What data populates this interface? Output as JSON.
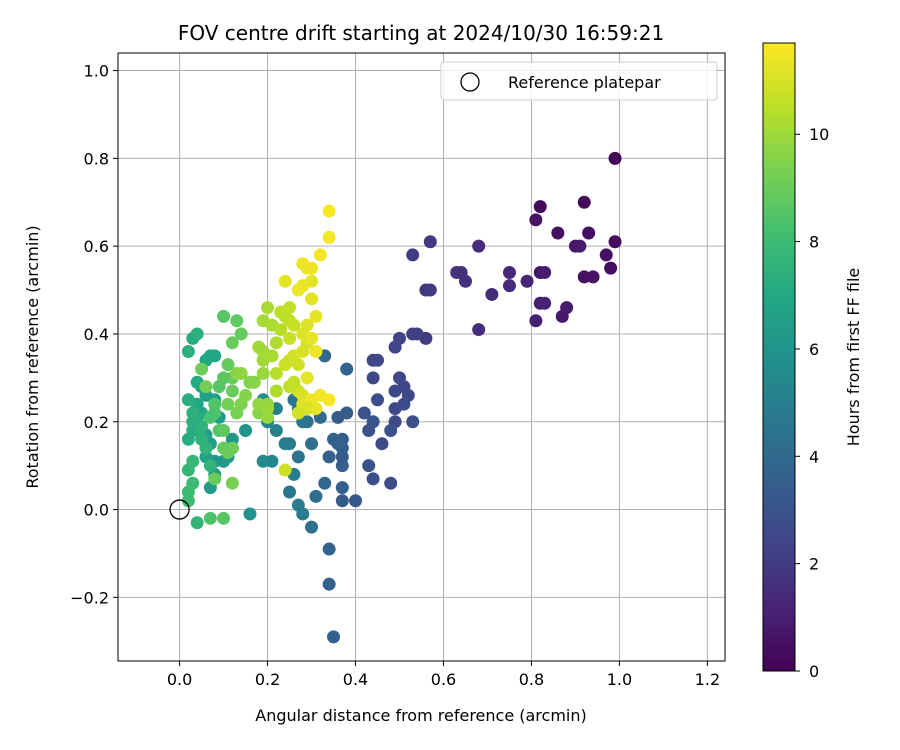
{
  "chart_data": {
    "type": "scatter",
    "title": "FOV centre drift starting at 2024/10/30 16:59:21",
    "xlabel": "Angular distance from reference (arcmin)",
    "ylabel": "Rotation from reference (arcmin)",
    "xlim": [
      -0.14,
      1.24
    ],
    "ylim": [
      -0.345,
      1.04
    ],
    "xticks": [
      0.0,
      0.2,
      0.4,
      0.6,
      0.8,
      1.0,
      1.2
    ],
    "xtick_labels": [
      "0.0",
      "0.2",
      "0.4",
      "0.6",
      "0.8",
      "1.0",
      "1.2"
    ],
    "yticks": [
      -0.2,
      0.0,
      0.2,
      0.4,
      0.6,
      0.8,
      1.0
    ],
    "ytick_labels": [
      "−0.2",
      "0.0",
      "0.2",
      "0.4",
      "0.6",
      "0.8",
      "1.0"
    ],
    "grid": true,
    "legend": {
      "placement": "top-right",
      "entries": [
        "Reference platepar"
      ]
    },
    "reference_point": {
      "x": 0.0,
      "y": 0.0
    },
    "colorbar": {
      "label": "Hours from first FF file",
      "colormap": "viridis",
      "min": 0,
      "max": 11.7,
      "ticks": [
        0,
        2,
        4,
        6,
        8,
        10
      ],
      "tick_labels": [
        "0",
        "2",
        "4",
        "6",
        "8",
        "10"
      ]
    },
    "points": [
      [
        0.99,
        0.8,
        0.1
      ],
      [
        0.99,
        0.61,
        0.3
      ],
      [
        0.97,
        0.58,
        0.5
      ],
      [
        0.98,
        0.55,
        0.4
      ],
      [
        0.94,
        0.53,
        0.6
      ],
      [
        0.92,
        0.53,
        0.5
      ],
      [
        0.93,
        0.63,
        0.4
      ],
      [
        0.92,
        0.7,
        0.3
      ],
      [
        0.9,
        0.6,
        0.7
      ],
      [
        0.91,
        0.6,
        0.8
      ],
      [
        0.86,
        0.63,
        0.5
      ],
      [
        0.82,
        0.69,
        0.3
      ],
      [
        0.81,
        0.66,
        0.6
      ],
      [
        0.82,
        0.54,
        0.7
      ],
      [
        0.83,
        0.54,
        0.9
      ],
      [
        0.88,
        0.46,
        0.9
      ],
      [
        0.87,
        0.44,
        0.8
      ],
      [
        0.82,
        0.47,
        1.0
      ],
      [
        0.83,
        0.47,
        1.1
      ],
      [
        0.81,
        0.43,
        1.0
      ],
      [
        0.79,
        0.52,
        1.2
      ],
      [
        0.75,
        0.54,
        1.3
      ],
      [
        0.75,
        0.51,
        1.4
      ],
      [
        0.71,
        0.49,
        1.5
      ],
      [
        0.68,
        0.6,
        1.4
      ],
      [
        0.64,
        0.54,
        1.6
      ],
      [
        0.65,
        0.52,
        1.7
      ],
      [
        0.63,
        0.54,
        1.6
      ],
      [
        0.68,
        0.41,
        1.5
      ],
      [
        0.57,
        0.61,
        1.9
      ],
      [
        0.56,
        0.5,
        1.8
      ],
      [
        0.57,
        0.5,
        2.0
      ],
      [
        0.53,
        0.58,
        2.1
      ],
      [
        0.56,
        0.39,
        2.0
      ],
      [
        0.53,
        0.4,
        2.1
      ],
      [
        0.54,
        0.4,
        2.2
      ],
      [
        0.5,
        0.39,
        2.3
      ],
      [
        0.49,
        0.37,
        2.4
      ],
      [
        0.5,
        0.3,
        2.5
      ],
      [
        0.51,
        0.28,
        2.5
      ],
      [
        0.52,
        0.26,
        2.6
      ],
      [
        0.51,
        0.24,
        2.7
      ],
      [
        0.49,
        0.27,
        2.6
      ],
      [
        0.49,
        0.23,
        2.5
      ],
      [
        0.53,
        0.2,
        2.8
      ],
      [
        0.49,
        0.2,
        2.7
      ],
      [
        0.48,
        0.18,
        2.9
      ],
      [
        0.46,
        0.15,
        2.6
      ],
      [
        0.44,
        0.34,
        2.4
      ],
      [
        0.45,
        0.34,
        2.5
      ],
      [
        0.44,
        0.3,
        2.6
      ],
      [
        0.45,
        0.25,
        2.8
      ],
      [
        0.42,
        0.22,
        3.0
      ],
      [
        0.43,
        0.18,
        3.0
      ],
      [
        0.44,
        0.2,
        3.1
      ],
      [
        0.43,
        0.1,
        3.0
      ],
      [
        0.44,
        0.07,
        2.8
      ],
      [
        0.48,
        0.06,
        2.7
      ],
      [
        0.4,
        0.02,
        3.2
      ],
      [
        0.38,
        0.32,
        3.6
      ],
      [
        0.38,
        0.22,
        3.4
      ],
      [
        0.37,
        0.16,
        3.4
      ],
      [
        0.36,
        0.21,
        3.3
      ],
      [
        0.37,
        0.14,
        3.5
      ],
      [
        0.37,
        0.1,
        3.5
      ],
      [
        0.37,
        0.12,
        3.4
      ],
      [
        0.37,
        0.05,
        3.6
      ],
      [
        0.37,
        0.02,
        3.3
      ],
      [
        0.36,
        0.15,
        3.7
      ],
      [
        0.35,
        0.16,
        3.7
      ],
      [
        0.34,
        0.12,
        3.6
      ],
      [
        0.34,
        -0.09,
        3.7
      ],
      [
        0.34,
        -0.17,
        3.5
      ],
      [
        0.35,
        -0.29,
        3.6
      ],
      [
        0.33,
        0.35,
        4.0
      ],
      [
        0.32,
        0.21,
        4.1
      ],
      [
        0.33,
        0.06,
        4.0
      ],
      [
        0.3,
        0.15,
        4.2
      ],
      [
        0.29,
        0.2,
        4.3
      ],
      [
        0.31,
        0.03,
        4.1
      ],
      [
        0.3,
        -0.04,
        4.3
      ],
      [
        0.27,
        0.12,
        4.5
      ],
      [
        0.26,
        0.25,
        4.6
      ],
      [
        0.27,
        0.23,
        4.7
      ],
      [
        0.28,
        0.2,
        4.6
      ],
      [
        0.24,
        0.15,
        4.8
      ],
      [
        0.25,
        0.15,
        4.9
      ],
      [
        0.25,
        0.04,
        4.7
      ],
      [
        0.26,
        0.08,
        4.9
      ],
      [
        0.27,
        0.01,
        4.8
      ],
      [
        0.28,
        -0.01,
        4.8
      ],
      [
        0.22,
        0.18,
        5.2
      ],
      [
        0.22,
        0.23,
        5.1
      ],
      [
        0.2,
        0.2,
        5.3
      ],
      [
        0.21,
        0.11,
        5.4
      ],
      [
        0.19,
        0.11,
        5.5
      ],
      [
        0.19,
        0.25,
        5.6
      ],
      [
        0.16,
        -0.01,
        5.9
      ],
      [
        0.15,
        0.18,
        6.0
      ],
      [
        0.12,
        0.16,
        6.1
      ],
      [
        0.12,
        0.14,
        6.2
      ],
      [
        0.11,
        0.12,
        6.0
      ],
      [
        0.1,
        0.11,
        6.3
      ],
      [
        0.08,
        0.11,
        6.2
      ],
      [
        0.07,
        0.05,
        6.4
      ],
      [
        0.08,
        0.08,
        6.3
      ],
      [
        0.09,
        0.21,
        6.4
      ],
      [
        0.08,
        0.25,
        6.5
      ],
      [
        0.07,
        0.15,
        6.5
      ],
      [
        0.06,
        0.17,
        6.6
      ],
      [
        0.06,
        0.12,
        6.7
      ],
      [
        0.06,
        0.26,
        6.6
      ],
      [
        0.05,
        0.22,
        6.8
      ],
      [
        0.05,
        0.28,
        6.8
      ],
      [
        0.06,
        0.34,
        6.9
      ],
      [
        0.07,
        0.35,
        7.0
      ],
      [
        0.08,
        0.35,
        6.9
      ],
      [
        0.04,
        0.24,
        7.0
      ],
      [
        0.04,
        0.29,
        7.1
      ],
      [
        0.04,
        0.21,
        7.2
      ],
      [
        0.03,
        0.18,
        7.3
      ],
      [
        0.02,
        0.16,
        7.2
      ],
      [
        0.02,
        0.25,
        7.3
      ],
      [
        0.03,
        0.22,
        7.4
      ],
      [
        0.03,
        0.2,
        7.4
      ],
      [
        0.04,
        0.18,
        7.3
      ],
      [
        0.05,
        0.16,
        7.5
      ],
      [
        0.05,
        0.19,
        7.5
      ],
      [
        0.06,
        0.14,
        7.6
      ],
      [
        0.07,
        0.1,
        7.6
      ],
      [
        0.02,
        0.09,
        7.7
      ],
      [
        0.03,
        0.11,
        7.8
      ],
      [
        0.03,
        0.06,
        7.9
      ],
      [
        0.02,
        0.04,
        8.0
      ],
      [
        0.02,
        0.02,
        8.0
      ],
      [
        0.04,
        -0.03,
        7.6
      ],
      [
        0.02,
        0.36,
        7.4
      ],
      [
        0.03,
        0.39,
        7.2
      ],
      [
        0.04,
        0.4,
        7.4
      ],
      [
        0.07,
        -0.02,
        8.4
      ],
      [
        0.1,
        -0.02,
        8.6
      ],
      [
        0.1,
        0.44,
        8.6
      ],
      [
        0.13,
        0.43,
        8.8
      ],
      [
        0.14,
        0.4,
        8.9
      ],
      [
        0.12,
        0.38,
        9.0
      ],
      [
        0.11,
        0.33,
        8.9
      ],
      [
        0.12,
        0.3,
        9.0
      ],
      [
        0.1,
        0.3,
        8.7
      ],
      [
        0.09,
        0.28,
        8.6
      ],
      [
        0.08,
        0.24,
        8.5
      ],
      [
        0.08,
        0.22,
        8.4
      ],
      [
        0.07,
        0.21,
        8.3
      ],
      [
        0.09,
        0.18,
        8.5
      ],
      [
        0.1,
        0.18,
        8.8
      ],
      [
        0.1,
        0.14,
        8.9
      ],
      [
        0.11,
        0.13,
        9.0
      ],
      [
        0.12,
        0.14,
        9.1
      ],
      [
        0.12,
        0.06,
        9.3
      ],
      [
        0.08,
        0.07,
        9.0
      ],
      [
        0.06,
        0.28,
        9.2
      ],
      [
        0.05,
        0.32,
        9.1
      ],
      [
        0.11,
        0.24,
        9.2
      ],
      [
        0.13,
        0.22,
        9.3
      ],
      [
        0.14,
        0.24,
        9.4
      ],
      [
        0.15,
        0.26,
        9.5
      ],
      [
        0.16,
        0.29,
        9.4
      ],
      [
        0.13,
        0.31,
        9.6
      ],
      [
        0.14,
        0.31,
        9.7
      ],
      [
        0.18,
        0.22,
        9.6
      ],
      [
        0.18,
        0.24,
        9.8
      ],
      [
        0.2,
        0.21,
        9.9
      ],
      [
        0.2,
        0.24,
        9.8
      ],
      [
        0.19,
        0.31,
        9.9
      ],
      [
        0.19,
        0.34,
        10.0
      ],
      [
        0.19,
        0.36,
        10.1
      ],
      [
        0.18,
        0.37,
        10.0
      ],
      [
        0.19,
        0.43,
        10.1
      ],
      [
        0.2,
        0.46,
        10.2
      ],
      [
        0.21,
        0.42,
        10.2
      ],
      [
        0.22,
        0.38,
        10.3
      ],
      [
        0.21,
        0.35,
        10.2
      ],
      [
        0.22,
        0.31,
        10.4
      ],
      [
        0.23,
        0.41,
        10.4
      ],
      [
        0.23,
        0.45,
        10.5
      ],
      [
        0.24,
        0.44,
        10.5
      ],
      [
        0.25,
        0.46,
        10.6
      ],
      [
        0.25,
        0.43,
        10.6
      ],
      [
        0.26,
        0.42,
        10.7
      ],
      [
        0.25,
        0.39,
        10.7
      ],
      [
        0.24,
        0.33,
        10.8
      ],
      [
        0.25,
        0.34,
        10.8
      ],
      [
        0.26,
        0.35,
        10.9
      ],
      [
        0.27,
        0.33,
        10.9
      ],
      [
        0.28,
        0.36,
        11.0
      ],
      [
        0.29,
        0.38,
        11.0
      ],
      [
        0.28,
        0.4,
        11.1
      ],
      [
        0.29,
        0.42,
        11.1
      ],
      [
        0.3,
        0.48,
        11.2
      ],
      [
        0.31,
        0.44,
        11.3
      ],
      [
        0.3,
        0.52,
        11.2
      ],
      [
        0.29,
        0.55,
        11.3
      ],
      [
        0.28,
        0.56,
        11.4
      ],
      [
        0.3,
        0.55,
        11.4
      ],
      [
        0.28,
        0.51,
        11.3
      ],
      [
        0.27,
        0.5,
        11.4
      ],
      [
        0.24,
        0.52,
        11.2
      ],
      [
        0.32,
        0.58,
        11.5
      ],
      [
        0.34,
        0.62,
        11.5
      ],
      [
        0.34,
        0.68,
        11.6
      ],
      [
        0.3,
        0.39,
        11.3
      ],
      [
        0.31,
        0.36,
        11.4
      ],
      [
        0.27,
        0.27,
        10.9
      ],
      [
        0.28,
        0.26,
        11.0
      ],
      [
        0.28,
        0.24,
        11.1
      ],
      [
        0.29,
        0.3,
        11.2
      ],
      [
        0.3,
        0.25,
        11.4
      ],
      [
        0.32,
        0.26,
        11.5
      ],
      [
        0.34,
        0.25,
        11.6
      ],
      [
        0.31,
        0.23,
        11.3
      ],
      [
        0.29,
        0.23,
        11.1
      ],
      [
        0.27,
        0.22,
        10.9
      ],
      [
        0.25,
        0.28,
        10.6
      ],
      [
        0.26,
        0.29,
        10.6
      ],
      [
        0.22,
        0.27,
        10.3
      ],
      [
        0.24,
        0.09,
        10.8
      ],
      [
        0.2,
        0.23,
        9.9
      ],
      [
        0.17,
        0.29,
        9.6
      ],
      [
        0.12,
        0.27,
        9.0
      ]
    ]
  }
}
